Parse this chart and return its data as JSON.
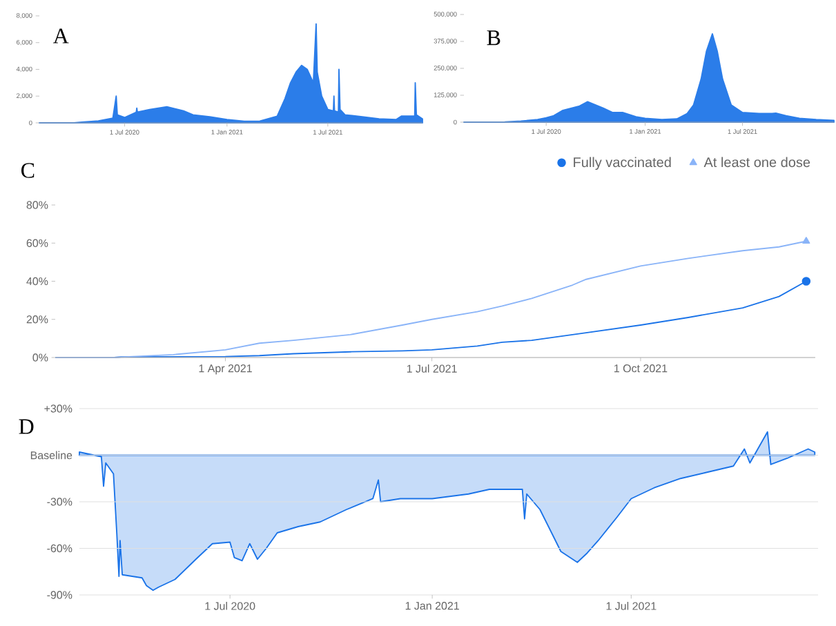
{
  "chart_data": [
    {
      "type": "area",
      "title": "A",
      "color": "#2b7de9",
      "x": [
        "2020-01-30",
        "2020-04-01",
        "2020-04-15",
        "2020-05-15",
        "2020-06-10",
        "2020-06-16",
        "2020-06-18",
        "2020-07-01",
        "2020-07-22",
        "2020-07-23",
        "2020-07-24",
        "2020-08-15",
        "2020-09-15",
        "2020-10-15",
        "2020-11-01",
        "2020-12-01",
        "2021-01-01",
        "2021-02-01",
        "2021-03-01",
        "2021-04-01",
        "2021-04-15",
        "2021-04-25",
        "2021-05-05",
        "2021-05-15",
        "2021-05-25",
        "2021-06-05",
        "2021-06-10",
        "2021-06-12",
        "2021-06-20",
        "2021-07-01",
        "2021-07-11",
        "2021-07-12",
        "2021-07-13",
        "2021-07-20",
        "2021-07-21",
        "2021-07-23",
        "2021-08-01",
        "2021-09-01",
        "2021-10-01",
        "2021-11-01",
        "2021-11-10",
        "2021-12-04",
        "2021-12-05",
        "2021-12-07",
        "2021-12-18"
      ],
      "values": [
        0,
        0,
        50,
        150,
        350,
        2000,
        600,
        400,
        800,
        1100,
        800,
        1000,
        1200,
        900,
        600,
        450,
        250,
        120,
        130,
        500,
        1800,
        3000,
        3800,
        4300,
        4000,
        3000,
        7400,
        3800,
        2000,
        1000,
        900,
        2000,
        900,
        800,
        4000,
        1000,
        600,
        450,
        300,
        250,
        500,
        500,
        3000,
        600,
        300
      ],
      "xlim": [
        "2020-01-30",
        "2021-12-18"
      ],
      "ylim": [
        0,
        8000
      ],
      "xticks": [
        {
          "value": "2020-07-01",
          "label": "1 Jul 2020"
        },
        {
          "value": "2021-01-01",
          "label": "1 Jan 2021"
        },
        {
          "value": "2021-07-01",
          "label": "1 Jul 2021"
        }
      ],
      "yticks": [
        0,
        {
          "value": 2000,
          "label": "2,000"
        },
        {
          "value": 4000,
          "label": "4,000"
        },
        {
          "value": 6000,
          "label": "6,000"
        },
        {
          "value": 8000,
          "label": "8,000"
        }
      ]
    },
    {
      "type": "area",
      "title": "B",
      "color": "#2b7de9",
      "x": [
        "2020-01-30",
        "2020-04-15",
        "2020-05-15",
        "2020-06-15",
        "2020-07-01",
        "2020-07-15",
        "2020-08-01",
        "2020-09-01",
        "2020-09-16",
        "2020-10-15",
        "2020-11-01",
        "2020-11-20",
        "2020-12-15",
        "2021-01-01",
        "2021-02-01",
        "2021-03-01",
        "2021-03-20",
        "2021-04-01",
        "2021-04-15",
        "2021-04-25",
        "2021-05-06",
        "2021-05-15",
        "2021-05-25",
        "2021-06-10",
        "2021-07-01",
        "2021-08-01",
        "2021-08-25",
        "2021-09-01",
        "2021-09-20",
        "2021-10-15",
        "2021-11-15",
        "2021-12-18"
      ],
      "values": [
        0,
        1000,
        5000,
        12000,
        20000,
        30000,
        55000,
        75000,
        95000,
        65000,
        45000,
        45000,
        25000,
        18000,
        12000,
        15000,
        40000,
        80000,
        200000,
        330000,
        410000,
        330000,
        200000,
        80000,
        45000,
        40000,
        40000,
        42000,
        30000,
        18000,
        12000,
        8000
      ],
      "xlim": [
        "2020-01-30",
        "2021-12-18"
      ],
      "ylim": [
        0,
        500000
      ],
      "xticks": [
        {
          "value": "2020-07-01",
          "label": "1 Jul 2020"
        },
        {
          "value": "2021-01-01",
          "label": "1 Jan 2021"
        },
        {
          "value": "2021-07-01",
          "label": "1 Jul 2021"
        }
      ],
      "yticks": [
        0,
        {
          "value": 125000,
          "label": "125,000"
        },
        {
          "value": 250000,
          "label": "250,000"
        },
        {
          "value": 375000,
          "label": "375,000"
        },
        {
          "value": 500000,
          "label": "500,000"
        }
      ]
    },
    {
      "type": "line",
      "title": "C",
      "legend": "top right",
      "x": [
        "2021-01-16",
        "2021-02-11",
        "2021-02-14",
        "2021-03-09",
        "2021-04-01",
        "2021-04-16",
        "2021-05-01",
        "2021-05-26",
        "2021-06-18",
        "2021-07-01",
        "2021-07-21",
        "2021-08-01",
        "2021-08-14",
        "2021-09-01",
        "2021-09-07",
        "2021-10-01",
        "2021-10-22",
        "2021-11-15",
        "2021-12-01",
        "2021-12-13"
      ],
      "series": [
        {
          "name": "Fully vaccinated",
          "color": "#1a73e8",
          "values": [
            0,
            0,
            0.3,
            0.4,
            0.5,
            1,
            2,
            3,
            3.5,
            4,
            6,
            8,
            9,
            12,
            13,
            17,
            21,
            26,
            32,
            40
          ]
        },
        {
          "name": "At least one dose",
          "color": "#8ab4f8",
          "values": [
            0,
            0,
            0.2,
            1.5,
            4,
            7.5,
            9,
            12,
            17,
            20,
            24,
            27,
            31,
            38,
            41,
            48,
            52,
            56,
            58,
            61
          ]
        }
      ],
      "xlim": [
        "2021-01-16",
        "2021-12-17"
      ],
      "ylim": [
        0,
        80
      ],
      "xticks": [
        {
          "value": "2021-04-01",
          "label": "1 Apr 2021"
        },
        {
          "value": "2021-07-01",
          "label": "1 Jul 2021"
        },
        {
          "value": "2021-10-01",
          "label": "1 Oct 2021"
        }
      ],
      "yticks": [
        {
          "value": 0,
          "label": "0%"
        },
        {
          "value": 20,
          "label": "20%"
        },
        {
          "value": 40,
          "label": "40%"
        },
        {
          "value": 60,
          "label": "60%"
        },
        {
          "value": 80,
          "label": "80%"
        }
      ]
    },
    {
      "type": "area",
      "title": "D",
      "color": "#1a73e8",
      "grid": "y",
      "x": [
        "2020-02-15",
        "2020-03-06",
        "2020-03-08",
        "2020-03-10",
        "2020-03-17",
        "2020-03-20",
        "2020-03-22",
        "2020-03-23",
        "2020-03-25",
        "2020-04-12",
        "2020-04-16",
        "2020-04-22",
        "2020-04-27",
        "2020-05-12",
        "2020-05-31",
        "2020-06-15",
        "2020-07-01",
        "2020-07-05",
        "2020-07-12",
        "2020-07-19",
        "2020-07-26",
        "2020-08-03",
        "2020-08-13",
        "2020-09-01",
        "2020-09-21",
        "2020-10-15",
        "2020-11-08",
        "2020-11-13",
        "2020-11-15",
        "2020-12-03",
        "2021-01-01",
        "2021-02-03",
        "2021-02-22",
        "2021-03-24",
        "2021-03-26",
        "2021-03-28",
        "2021-04-09",
        "2021-04-21",
        "2021-04-28",
        "2021-05-13",
        "2021-05-22",
        "2021-06-01",
        "2021-06-18",
        "2021-07-01",
        "2021-07-22",
        "2021-08-15",
        "2021-09-08",
        "2021-10-02",
        "2021-10-12",
        "2021-10-17",
        "2021-11-02",
        "2021-11-05",
        "2021-11-20",
        "2021-12-09",
        "2021-12-15"
      ],
      "values": [
        2,
        -1,
        -20,
        -5,
        -12,
        -50,
        -78,
        -55,
        -77,
        -79,
        -84,
        -87,
        -85,
        -80,
        -67,
        -57,
        -56,
        -66,
        -68,
        -57,
        -67,
        -60,
        -50,
        -46,
        -43,
        -35,
        -28,
        -16,
        -30,
        -28,
        -28,
        -25,
        -22,
        -22,
        -41,
        -25,
        -35,
        -52,
        -62,
        -69,
        -63,
        -55,
        -40,
        -28,
        -21,
        -15,
        -11,
        -7,
        4,
        -5,
        15,
        -6,
        -2,
        4,
        2
      ],
      "xlim": [
        "2020-02-15",
        "2021-12-18"
      ],
      "ylim": [
        -90,
        30
      ],
      "xticks": [
        {
          "value": "2020-07-01",
          "label": "1 Jul 2020"
        },
        {
          "value": "2021-01-01",
          "label": "1 Jan 2021"
        },
        {
          "value": "2021-07-01",
          "label": "1 Jul 2021"
        }
      ],
      "yticks": [
        {
          "value": -90,
          "label": "-90%"
        },
        {
          "value": -60,
          "label": "-60%"
        },
        {
          "value": -30,
          "label": "-30%"
        },
        {
          "value": 0,
          "label": "Baseline"
        },
        {
          "value": 30,
          "label": "+30%"
        }
      ]
    }
  ]
}
